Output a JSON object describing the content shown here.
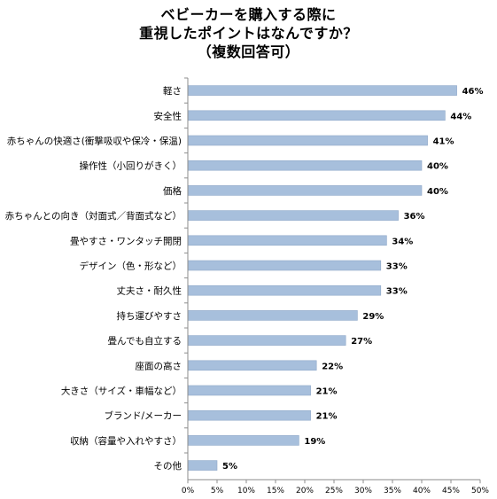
{
  "chart_data": {
    "type": "bar",
    "orientation": "horizontal",
    "title_lines": [
      "ベビーカーを購入する際に",
      "重視したポイントはなんですか？",
      "（複数回答可）"
    ],
    "categories": [
      "軽さ",
      "安全性",
      "赤ちゃんの快適さ(衝撃吸収や保冷・保温)",
      "操作性（小回りがきく）",
      "価格",
      "赤ちゃんとの向き（対面式／背面式など）",
      "畳やすさ・ワンタッチ開閉",
      "デザイン（色・形など）",
      "丈夫さ・耐久性",
      "持ち運びやすさ",
      "畳んでも自立する",
      "座面の高さ",
      "大きさ（サイズ・車幅など）",
      "ブランド/メーカー",
      "収納（容量や入れやすさ）",
      "その他"
    ],
    "values": [
      46,
      44,
      41,
      40,
      40,
      36,
      34,
      33,
      33,
      29,
      27,
      22,
      21,
      21,
      19,
      5
    ],
    "value_labels": [
      "46%",
      "44%",
      "41%",
      "40%",
      "40%",
      "36%",
      "34%",
      "33%",
      "33%",
      "29%",
      "27%",
      "22%",
      "21%",
      "21%",
      "19%",
      "5%"
    ],
    "xlim": [
      0,
      50
    ],
    "xticks": [
      "0%",
      "5%",
      "10%",
      "15%",
      "20%",
      "25%",
      "30%",
      "35%",
      "40%",
      "45%",
      "50%"
    ],
    "grid": false,
    "legend": "none",
    "bar_color": "#a7bfdc",
    "bar_edge_color": "#8fa9c9",
    "axis_color": "#8c8c8c"
  }
}
